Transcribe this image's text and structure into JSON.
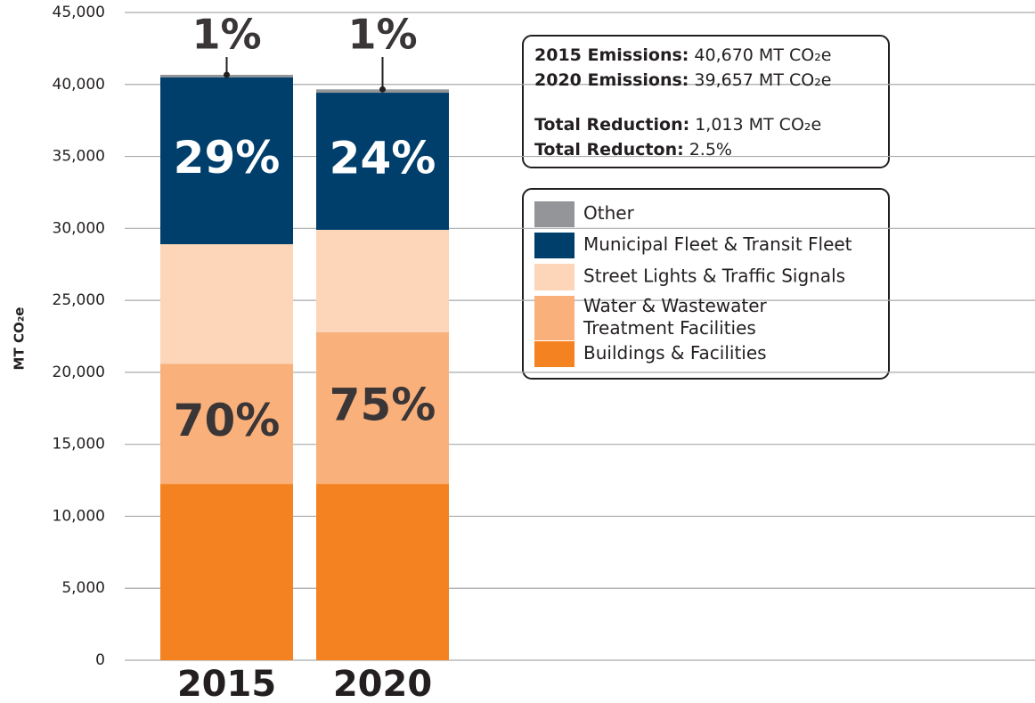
{
  "chart_data": {
    "type": "stacked_bar",
    "y_label": "MT CO₂e",
    "categories": [
      "2015",
      "2020"
    ],
    "series": [
      {
        "name": "Buildings & Facilities",
        "color": "#f58220",
        "values": [
          12250,
          12250
        ]
      },
      {
        "name": "Water & Wastewater\nTreatment Facilities",
        "color": "#f9b07a",
        "values": [
          8350,
          10530
        ]
      },
      {
        "name": "Street Lights & Traffic Signals",
        "color": "#fdd5b8",
        "values": [
          8300,
          7120
        ]
      },
      {
        "name": "Municipal Fleet & Transit Fleet",
        "color": "#003f6b",
        "values": [
          11600,
          9527
        ]
      },
      {
        "name": "Other",
        "color": "#939598",
        "values": [
          170,
          230
        ]
      }
    ],
    "bar_labels": [
      [
        "70%",
        "29%",
        "1%"
      ],
      [
        "75%",
        "24%",
        "1%"
      ]
    ],
    "ylim": [
      0,
      45000
    ],
    "yticks": [
      0,
      {
        "value": 5000,
        "label": "5,000"
      },
      {
        "value": 10000,
        "label": "10,000"
      },
      {
        "value": 15000,
        "label": "15,000"
      },
      {
        "value": 20000,
        "label": "20,000"
      },
      {
        "value": 25000,
        "label": "25,000"
      },
      {
        "value": 30000,
        "label": "30,000"
      },
      {
        "value": 35000,
        "label": "35,000"
      },
      {
        "value": 40000,
        "label": "40,000"
      },
      {
        "value": 45000,
        "label": "45,000"
      }
    ],
    "grid": true,
    "info_box": [
      {
        "label": "2015 Emissions:",
        "text": "40,670 MT CO₂e"
      },
      {
        "label": "2020 Emissions:",
        "text": "39,657 MT CO₂e"
      },
      {
        "label": "Total Reduction:",
        "text": "1,013 MT CO₂e"
      },
      {
        "label": "Total Reducton:",
        "text": "2.5%"
      }
    ]
  }
}
